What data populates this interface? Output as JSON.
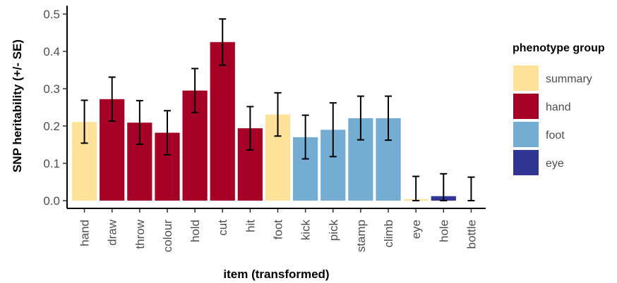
{
  "chart_data": {
    "type": "bar",
    "xlabel": "item (transformed)",
    "ylabel": "SNP heritability (+/- SE)",
    "ylim": [
      0,
      0.5
    ],
    "yticks": [
      "0.0",
      "0.1",
      "0.2",
      "0.3",
      "0.4",
      "0.5"
    ],
    "grid": false,
    "legend": {
      "title": "phenotype group",
      "position": "right",
      "entries": [
        {
          "label": "summary",
          "color": "#FEE29A"
        },
        {
          "label": "hand",
          "color": "#A50026"
        },
        {
          "label": "foot",
          "color": "#74ADD1"
        },
        {
          "label": "eye",
          "color": "#313695"
        }
      ]
    },
    "categories": [
      "hand",
      "draw",
      "throw",
      "colour",
      "hold",
      "cut",
      "hit",
      "foot",
      "kick",
      "pick",
      "stamp",
      "climb",
      "eye",
      "hole",
      "bottle"
    ],
    "groups": [
      "summary",
      "hand",
      "hand",
      "hand",
      "hand",
      "hand",
      "hand",
      "summary",
      "foot",
      "foot",
      "foot",
      "foot",
      "summary",
      "eye",
      "eye"
    ],
    "values": [
      0.211,
      0.272,
      0.209,
      0.182,
      0.295,
      0.425,
      0.194,
      0.231,
      0.17,
      0.19,
      0.221,
      0.221,
      0.004,
      0.012,
      0.0
    ],
    "error_low": [
      0.154,
      0.213,
      0.151,
      0.123,
      0.236,
      0.363,
      0.136,
      0.173,
      0.112,
      0.118,
      0.163,
      0.162,
      0.0,
      0.0,
      0.0
    ],
    "error_high": [
      0.269,
      0.331,
      0.268,
      0.241,
      0.354,
      0.487,
      0.252,
      0.289,
      0.229,
      0.262,
      0.28,
      0.28,
      0.065,
      0.072,
      0.063
    ]
  }
}
